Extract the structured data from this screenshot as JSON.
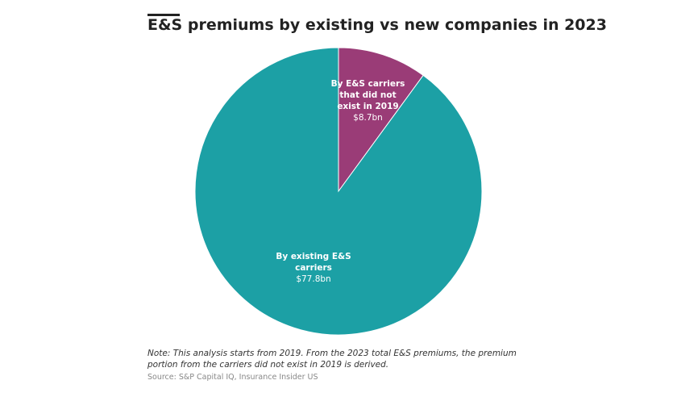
{
  "chart_data": {
    "type": "pie",
    "title": "E&S premiums by existing vs new companies in 2023",
    "categories": [
      "By E&S carriers that did not exist in 2019",
      "By existing E&S carriers"
    ],
    "values": [
      8.7,
      77.8
    ],
    "value_labels": [
      "$8.7bn",
      "$77.8bn"
    ],
    "colors": [
      "#9a3c77",
      "#1ca0a5"
    ],
    "note": "Note: This analysis starts from 2019. From the 2023 total E&S premiums, the premium portion from the carriers did not exist in 2019 is derived.",
    "source": "Source: S&P Capital IQ, Insurance Insider US"
  }
}
